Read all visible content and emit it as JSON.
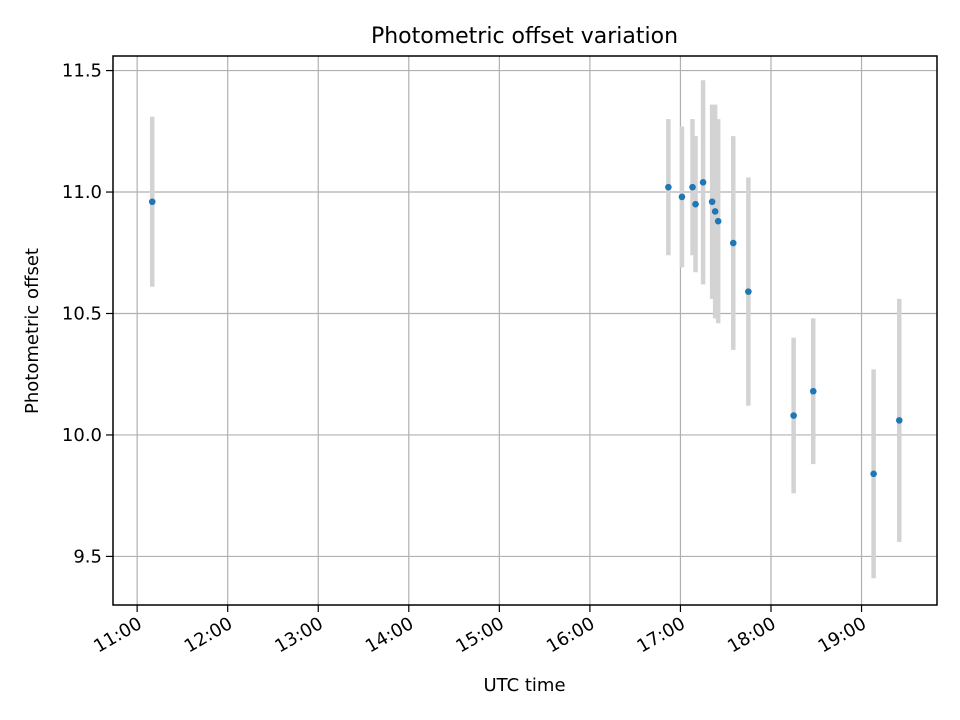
{
  "chart_data": {
    "type": "scatter",
    "title": "Photometric offset variation",
    "xlabel": "UTC time",
    "ylabel": "Photometric offset",
    "xlim": [
      "10:44",
      "19:50"
    ],
    "ylim": [
      9.3,
      11.56
    ],
    "grid": true,
    "x_ticks": [
      "11:00",
      "12:00",
      "13:00",
      "14:00",
      "15:00",
      "16:00",
      "17:00",
      "18:00",
      "19:00"
    ],
    "y_ticks": [
      "9.5",
      "10.0",
      "10.5",
      "11.0",
      "11.5"
    ],
    "errorbar_color": "#d3d3d3",
    "point_color": "#1f77b4",
    "series": [
      {
        "points": [
          {
            "t": "11:10",
            "y": 10.96,
            "err": 0.35
          },
          {
            "t": "16:52",
            "y": 11.02,
            "err": 0.28
          },
          {
            "t": "17:01",
            "y": 10.98,
            "err": 0.29
          },
          {
            "t": "17:08",
            "y": 11.02,
            "err": 0.28
          },
          {
            "t": "17:10",
            "y": 10.95,
            "err": 0.28
          },
          {
            "t": "17:15",
            "y": 11.04,
            "err": 0.42
          },
          {
            "t": "17:21",
            "y": 10.96,
            "err": 0.4
          },
          {
            "t": "17:23",
            "y": 10.92,
            "err": 0.44
          },
          {
            "t": "17:25",
            "y": 10.88,
            "err": 0.42
          },
          {
            "t": "17:35",
            "y": 10.79,
            "err": 0.44
          },
          {
            "t": "17:45",
            "y": 10.59,
            "err": 0.47
          },
          {
            "t": "18:15",
            "y": 10.08,
            "err": 0.32
          },
          {
            "t": "18:28",
            "y": 10.18,
            "err": 0.3
          },
          {
            "t": "19:08",
            "y": 9.84,
            "err": 0.43
          },
          {
            "t": "19:25",
            "y": 10.06,
            "err": 0.5
          }
        ]
      }
    ]
  }
}
